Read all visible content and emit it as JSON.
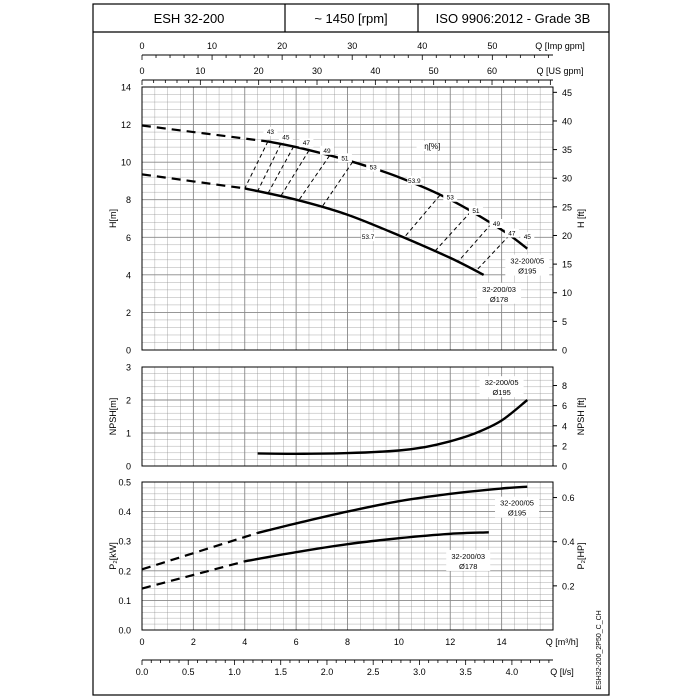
{
  "header": {
    "model": "ESH 32-200",
    "speed": "~ 1450 [rpm]",
    "standard": "ISO 9906:2012 - Grade 3B"
  },
  "side_code": "ESH32-200_2P50_C_CH",
  "chart_data": [
    {
      "type": "line",
      "name": "head",
      "ylabel": "H[m]",
      "ylabel_right": "H [ft]",
      "ylim": [
        0,
        14
      ],
      "yticks": [
        0,
        2,
        4,
        6,
        8,
        10,
        12,
        14
      ],
      "yticks_right": [
        0,
        5,
        10,
        15,
        20,
        25,
        30,
        35,
        40,
        45
      ],
      "xlim": [
        0,
        16
      ],
      "top_axes": [
        {
          "label": "Q [Imp gpm]",
          "ticks": [
            0,
            10,
            20,
            30,
            40,
            50
          ]
        },
        {
          "label": "Q [US gpm]",
          "ticks": [
            0,
            10,
            20,
            30,
            40,
            50,
            60
          ]
        }
      ],
      "efficiency_label": "η[%]",
      "series": [
        {
          "name": "32-200/05",
          "sublabel": "Ø195",
          "dashed_x": [
            0,
            4.9
          ],
          "x": [
            4.9,
            6,
            8,
            10,
            12,
            14,
            15
          ],
          "y": [
            11.1,
            10.8,
            10.1,
            9.2,
            8.0,
            6.4,
            5.4
          ],
          "dashed_y": [
            11.95,
            11.1
          ]
        },
        {
          "name": "32-200/03",
          "sublabel": "Ø178",
          "dashed_x": [
            0,
            4.0
          ],
          "x": [
            4.0,
            6,
            8,
            10,
            12,
            13.3
          ],
          "y": [
            8.6,
            8.0,
            7.2,
            6.1,
            4.9,
            4.0
          ],
          "dashed_y": [
            9.35,
            8.6
          ]
        }
      ],
      "eff_labels": [
        "43",
        "45",
        "47",
        "49",
        "51",
        "53",
        "53.9",
        "53.7",
        "53",
        "51",
        "49",
        "47",
        "45"
      ]
    },
    {
      "type": "line",
      "name": "npsh",
      "ylabel": "NPSH[m]",
      "ylabel_right": "NPSH [ft]",
      "ylim": [
        0,
        3
      ],
      "yticks": [
        0,
        1,
        2,
        3
      ],
      "yticks_right": [
        0,
        2,
        4,
        6,
        8
      ],
      "series": [
        {
          "name": "32-200/05",
          "sublabel": "Ø195",
          "x": [
            4.5,
            6,
            8,
            10,
            11,
            12,
            13,
            14,
            15
          ],
          "y": [
            0.38,
            0.37,
            0.39,
            0.47,
            0.57,
            0.75,
            1.0,
            1.38,
            2.0
          ]
        }
      ]
    },
    {
      "type": "line",
      "name": "power",
      "ylabel": "P₂[kW]",
      "ylabel_right": "P₂[HP]",
      "ylim": [
        0,
        0.5
      ],
      "yticks": [
        0.0,
        0.1,
        0.2,
        0.3,
        0.4,
        0.5
      ],
      "yticks_right": [
        0.2,
        0.4,
        0.6
      ],
      "xlabel": "Q [m³/h]",
      "xticks": [
        0,
        2,
        4,
        6,
        8,
        10,
        12,
        14
      ],
      "xlabel2": "Q [l/s]",
      "xticks2": [
        "0.0",
        "0.5",
        "1.0",
        "1.5",
        "2.0",
        "2.5",
        "3.0",
        "3.5",
        "4.0"
      ],
      "series": [
        {
          "name": "32-200/05",
          "sublabel": "Ø195",
          "dashed_x": [
            0,
            4.5
          ],
          "dashed_y": [
            0.205,
            0.328
          ],
          "x": [
            4.5,
            6,
            8,
            10,
            12,
            14,
            15
          ],
          "y": [
            0.328,
            0.36,
            0.4,
            0.435,
            0.46,
            0.478,
            0.484
          ]
        },
        {
          "name": "32-200/03",
          "sublabel": "Ø178",
          "dashed_x": [
            0,
            4.0
          ],
          "dashed_y": [
            0.14,
            0.232
          ],
          "x": [
            4.0,
            6,
            8,
            10,
            12,
            13.5
          ],
          "y": [
            0.232,
            0.263,
            0.29,
            0.31,
            0.325,
            0.33
          ]
        }
      ]
    }
  ]
}
